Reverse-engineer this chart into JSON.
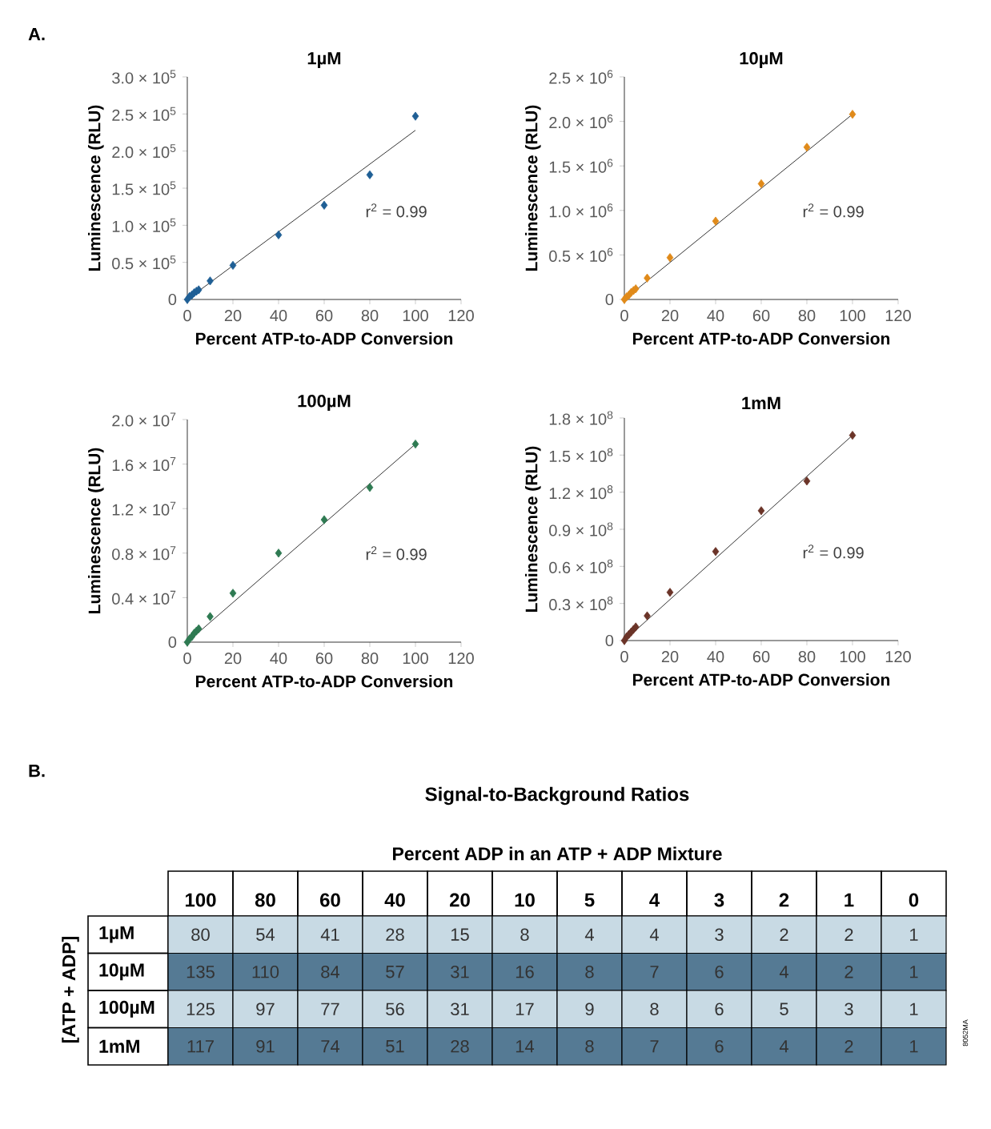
{
  "chart_data": [
    {
      "type": "scatter",
      "title": "1µM",
      "xlabel": "Percent ATP-to-ADP Conversion",
      "ylabel": "Luminescence (RLU)",
      "marker": "diamond",
      "annotations": [
        "A.",
        "r$^{2}$ = 0.99"
      ],
      "x": [
        0,
        1,
        2,
        3,
        4,
        5,
        10,
        20,
        40,
        60,
        80,
        100
      ],
      "xlim": [
        0,
        120
      ],
      "xticks": [
        0,
        20,
        40,
        60,
        80,
        100,
        120
      ],
      "ylim": [
        0,
        300000
      ],
      "yticks": [
        0,
        {
          "value": 50000,
          "label": "0.5 × 10$^{5}$"
        },
        {
          "value": 100000,
          "label": "1.0 × 10$^{5}$"
        },
        {
          "value": 150000,
          "label": "1.5 × 10$^{5}$"
        },
        {
          "value": 200000,
          "label": "2.0 × 10$^{5}$"
        },
        {
          "value": 250000,
          "label": "2.5 × 10$^{5}$"
        },
        {
          "value": 300000,
          "label": "3.0 × 10$^{5}$"
        }
      ],
      "series": [
        {
          "color": "#1f5f95",
          "values": [
            0,
            4000,
            6000,
            9000,
            11000,
            13000,
            25000,
            46000,
            87000,
            127000,
            168000,
            247000
          ]
        },
        {
          "type": "line",
          "marker": "none",
          "color": "#000000",
          "values": [
            0,
            null,
            null,
            null,
            null,
            null,
            null,
            null,
            null,
            null,
            null,
            228000
          ]
        }
      ]
    },
    {
      "type": "scatter",
      "title": "10µM",
      "xlabel": "Percent ATP-to-ADP Conversion",
      "ylabel": "Luminescence (RLU)",
      "marker": "diamond",
      "annotations": [
        "r$^{2}$ = 0.99"
      ],
      "x": [
        0,
        1,
        2,
        3,
        4,
        5,
        10,
        20,
        40,
        60,
        80,
        100
      ],
      "xlim": [
        0,
        120
      ],
      "xticks": [
        0,
        20,
        40,
        60,
        80,
        100,
        120
      ],
      "ylim": [
        0,
        2500000
      ],
      "yticks": [
        0,
        {
          "value": 500000,
          "label": "0.5 × 10$^{6}$"
        },
        {
          "value": 1000000,
          "label": "1.0 × 10$^{6}$"
        },
        {
          "value": 1500000,
          "label": "1.5 × 10$^{6}$"
        },
        {
          "value": 2000000,
          "label": "2.0 × 10$^{6}$"
        },
        {
          "value": 2500000,
          "label": "2.5 × 10$^{6}$"
        }
      ],
      "series": [
        {
          "color": "#e08a1a",
          "values": [
            0,
            30000,
            50000,
            80000,
            100000,
            120000,
            240000,
            470000,
            880000,
            1300000,
            1710000,
            2080000
          ]
        },
        {
          "type": "line",
          "marker": "none",
          "color": "#000000",
          "values": [
            0,
            null,
            null,
            null,
            null,
            null,
            null,
            null,
            null,
            null,
            null,
            2080000
          ]
        }
      ]
    },
    {
      "type": "scatter",
      "title": "100µM",
      "xlabel": "Percent ATP-to-ADP Conversion",
      "ylabel": "Luminescence (RLU)",
      "marker": "diamond",
      "annotations": [
        "r$^{2}$ = 0.99"
      ],
      "x": [
        0,
        1,
        2,
        3,
        4,
        5,
        10,
        20,
        40,
        60,
        80,
        100
      ],
      "xlim": [
        0,
        120
      ],
      "xticks": [
        0,
        20,
        40,
        60,
        80,
        100,
        120
      ],
      "ylim": [
        0,
        20000000
      ],
      "yticks": [
        0,
        {
          "value": 4000000,
          "label": "0.4 × 10$^{7}$"
        },
        {
          "value": 8000000,
          "label": "0.8 × 10$^{7}$"
        },
        {
          "value": 12000000,
          "label": "1.2 × 10$^{7}$"
        },
        {
          "value": 16000000,
          "label": "1.6 × 10$^{7}$"
        },
        {
          "value": 20000000,
          "label": "2.0 × 10$^{7}$"
        }
      ],
      "series": [
        {
          "color": "#2e7a52",
          "values": [
            0,
            300000,
            500000,
            800000,
            1000000,
            1200000,
            2300000,
            4400000,
            8000000,
            11000000,
            13900000,
            17800000
          ]
        },
        {
          "type": "line",
          "marker": "none",
          "color": "#000000",
          "values": [
            0,
            null,
            null,
            null,
            null,
            null,
            null,
            null,
            null,
            null,
            null,
            17800000
          ]
        }
      ]
    },
    {
      "type": "scatter",
      "title": "1mM",
      "xlabel": "Percent ATP-to-ADP Conversion",
      "ylabel": "Luminescence (RLU)",
      "marker": "diamond",
      "annotations": [
        "r$^{2}$ = 0.99"
      ],
      "x": [
        0,
        1,
        2,
        3,
        4,
        5,
        10,
        20,
        40,
        60,
        80,
        100
      ],
      "xlim": [
        0,
        120
      ],
      "xticks": [
        0,
        20,
        40,
        60,
        80,
        100,
        120
      ],
      "ylim": [
        0,
        180000000
      ],
      "yticks": [
        0,
        {
          "value": 30000000,
          "label": "0.3 × 10$^{8}$"
        },
        {
          "value": 60000000,
          "label": "0.6 × 10$^{8}$"
        },
        {
          "value": 90000000,
          "label": "0.9 × 10$^{8}$"
        },
        {
          "value": 120000000,
          "label": "1.2 × 10$^{8}$"
        },
        {
          "value": 150000000,
          "label": "1.5 × 10$^{8}$"
        },
        {
          "value": 180000000,
          "label": "1.8 × 10$^{8}$"
        }
      ],
      "series": [
        {
          "color": "#6b3428",
          "values": [
            0,
            3000000,
            5000000,
            7000000,
            9000000,
            11000000,
            20000000,
            39000000,
            72000000,
            105000000,
            129000000,
            166000000
          ]
        },
        {
          "type": "line",
          "marker": "none",
          "color": "#000000",
          "values": [
            0,
            null,
            null,
            null,
            null,
            null,
            null,
            null,
            null,
            null,
            null,
            166000000
          ]
        }
      ]
    },
    {
      "type": "heatmap",
      "title": "Signal-to-Background Ratios",
      "xlabel": "Percent ADP in an ATP + ADP Mixture",
      "ylabel": "[ATP + ADP]",
      "annotations": [
        "B.",
        "8052MA"
      ],
      "categories": [
        "100",
        "80",
        "60",
        "40",
        "20",
        "10",
        "5",
        "4",
        "3",
        "2",
        "1",
        "0"
      ],
      "y_categories": [
        "1µM",
        "10µM",
        "100µM",
        "1mM"
      ],
      "colors": [
        "#c8dae4",
        "#557a94",
        "#c8dae4",
        "#557a94"
      ],
      "data_labels": true,
      "cells": [
        [
          80,
          54,
          41,
          28,
          15,
          8,
          4,
          4,
          3,
          2,
          2,
          1
        ],
        [
          135,
          110,
          84,
          57,
          31,
          16,
          8,
          7,
          6,
          4,
          2,
          1
        ],
        [
          125,
          97,
          77,
          56,
          31,
          17,
          9,
          8,
          6,
          5,
          3,
          1
        ],
        [
          117,
          91,
          74,
          51,
          28,
          14,
          8,
          7,
          6,
          4,
          2,
          1
        ]
      ]
    }
  ]
}
